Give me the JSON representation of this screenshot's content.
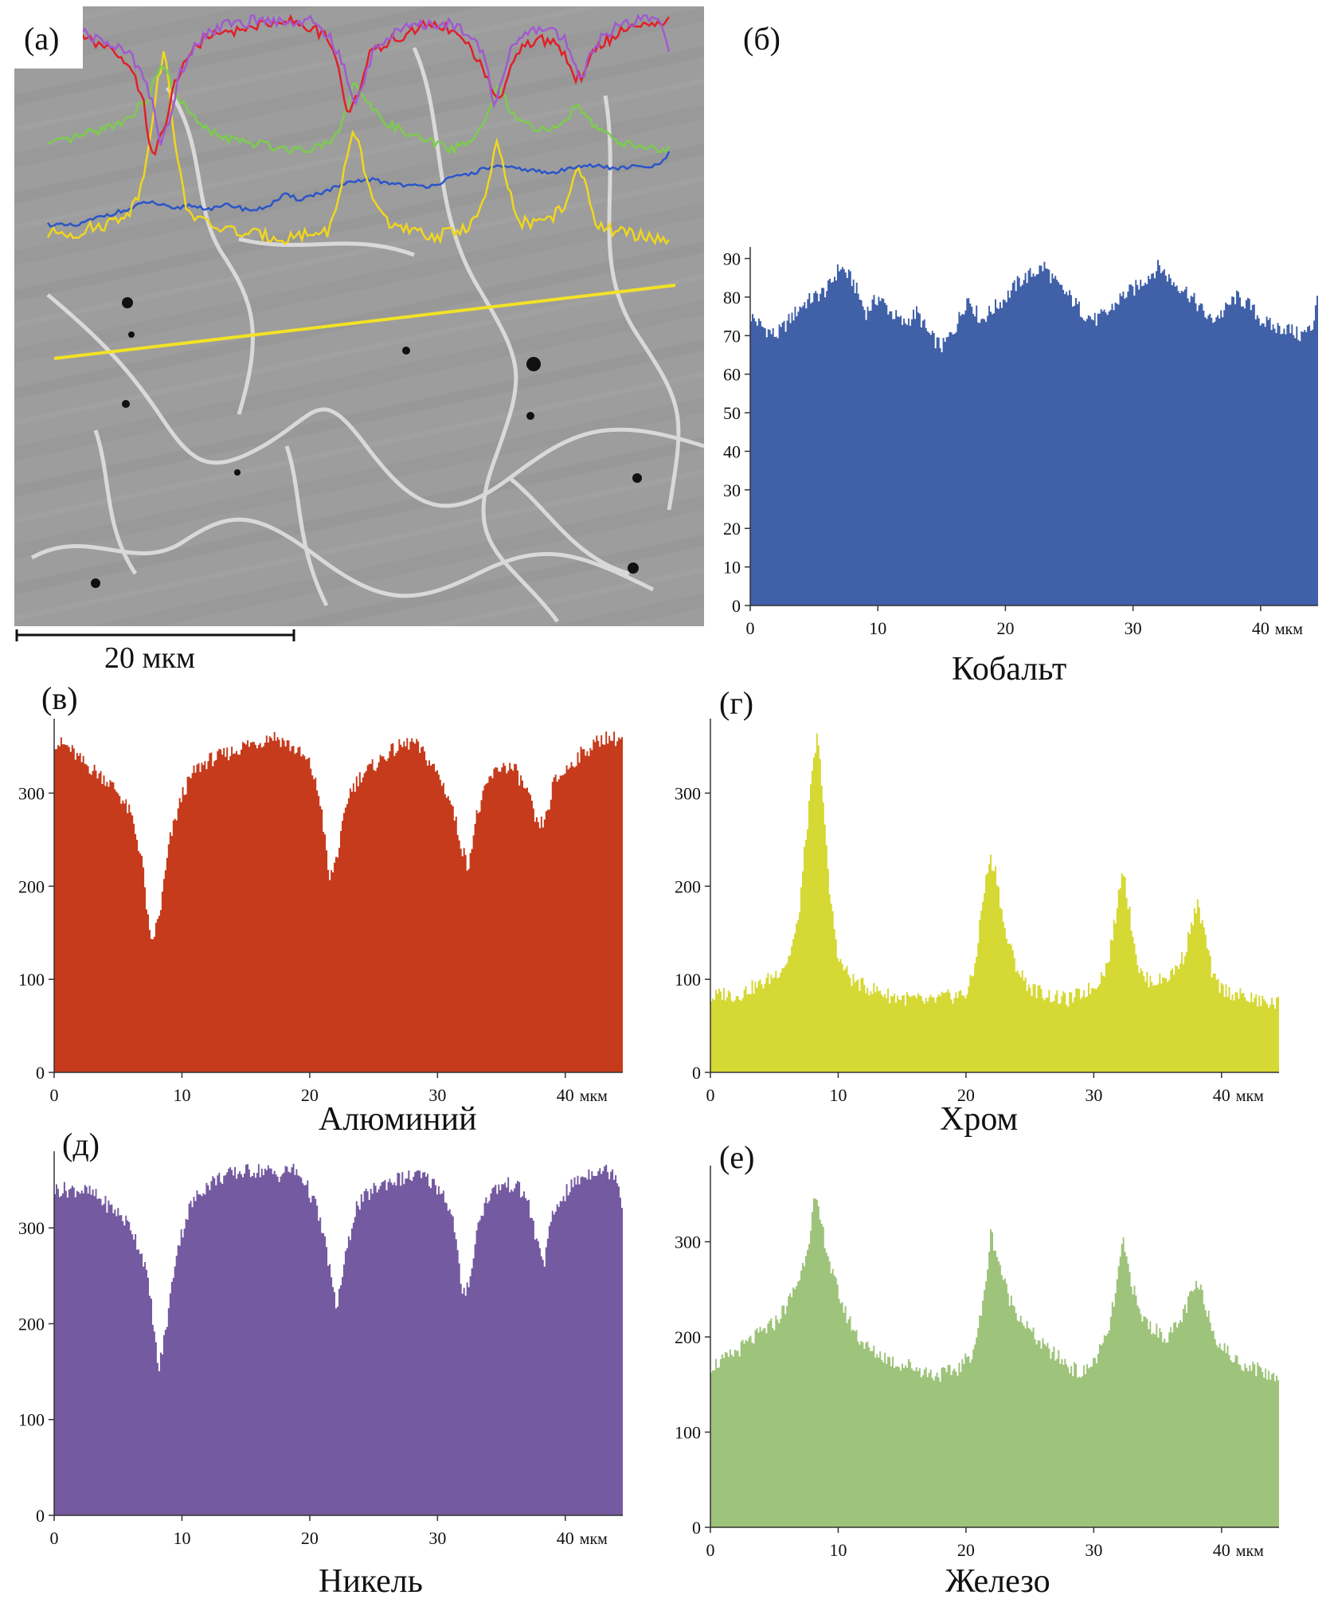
{
  "micrograph": {
    "panel_label": "(а)",
    "scale_bar_label": "20 мкм",
    "colors": {
      "matrix": "#9a9a9a",
      "grain_boundary": "#e4e4e4",
      "scan_line": "#f2e226"
    }
  },
  "chart_data": [
    {
      "id": "cobalt",
      "panel_label": "(б)",
      "type": "area",
      "title": "Кобальт",
      "color": "#4060a8",
      "xlim": [
        0,
        44.5
      ],
      "ylim": [
        0,
        93
      ],
      "xticks": [
        0,
        10,
        20,
        30,
        40
      ],
      "xtick_labels": [
        "0",
        "10",
        "20",
        "30",
        "40"
      ],
      "xunit": "мкм",
      "yticks": [
        0,
        10,
        20,
        30,
        40,
        50,
        60,
        70,
        80,
        90
      ],
      "profile": [
        [
          0,
          75
        ],
        [
          1,
          72
        ],
        [
          2,
          70
        ],
        [
          3,
          74
        ],
        [
          4,
          78
        ],
        [
          5,
          80
        ],
        [
          6,
          82
        ],
        [
          7,
          88
        ],
        [
          8,
          84
        ],
        [
          9,
          76
        ],
        [
          10,
          80
        ],
        [
          11,
          76
        ],
        [
          12,
          73
        ],
        [
          13,
          76
        ],
        [
          14,
          70
        ],
        [
          15,
          67
        ],
        [
          16,
          72
        ],
        [
          17,
          80
        ],
        [
          18,
          74
        ],
        [
          19,
          77
        ],
        [
          20,
          80
        ],
        [
          21,
          84
        ],
        [
          22,
          86
        ],
        [
          23,
          88
        ],
        [
          24,
          83
        ],
        [
          25,
          80
        ],
        [
          26,
          76
        ],
        [
          27,
          74
        ],
        [
          28,
          76
        ],
        [
          29,
          80
        ],
        [
          30,
          82
        ],
        [
          31,
          85
        ],
        [
          32,
          88
        ],
        [
          33,
          84
        ],
        [
          34,
          82
        ],
        [
          35,
          78
        ],
        [
          36,
          74
        ],
        [
          37,
          76
        ],
        [
          38,
          80
        ],
        [
          39,
          78
        ],
        [
          40,
          74
        ],
        [
          41,
          72
        ],
        [
          42,
          72
        ],
        [
          43,
          70
        ],
        [
          44,
          72
        ],
        [
          44.5,
          84
        ]
      ]
    },
    {
      "id": "aluminum",
      "panel_label": "(в)",
      "type": "area",
      "title": "Алюминий",
      "color": "#c53b1c",
      "xlim": [
        0,
        44.5
      ],
      "ylim": [
        0,
        380
      ],
      "xticks": [
        0,
        10,
        20,
        30,
        40
      ],
      "xtick_labels": [
        "0",
        "10",
        "20",
        "30",
        "40"
      ],
      "xunit": "мкм",
      "yticks": [
        0,
        100,
        200,
        300
      ],
      "profile": [
        [
          0,
          355
        ],
        [
          1,
          350
        ],
        [
          2,
          335
        ],
        [
          3,
          325
        ],
        [
          4,
          315
        ],
        [
          5,
          300
        ],
        [
          6,
          275
        ],
        [
          6.8,
          230
        ],
        [
          7.5,
          135
        ],
        [
          8.2,
          170
        ],
        [
          9,
          250
        ],
        [
          10,
          300
        ],
        [
          11,
          325
        ],
        [
          12,
          335
        ],
        [
          13,
          340
        ],
        [
          14,
          345
        ],
        [
          15,
          352
        ],
        [
          16,
          355
        ],
        [
          17,
          362
        ],
        [
          18,
          355
        ],
        [
          19,
          345
        ],
        [
          20,
          330
        ],
        [
          20.8,
          290
        ],
        [
          21.5,
          205
        ],
        [
          22.2,
          240
        ],
        [
          23,
          300
        ],
        [
          24,
          320
        ],
        [
          25,
          330
        ],
        [
          26,
          342
        ],
        [
          27,
          350
        ],
        [
          28,
          355
        ],
        [
          29,
          340
        ],
        [
          30,
          320
        ],
        [
          31,
          290
        ],
        [
          31.7,
          250
        ],
        [
          32.3,
          220
        ],
        [
          33,
          275
        ],
        [
          34,
          315
        ],
        [
          35,
          330
        ],
        [
          36,
          325
        ],
        [
          37,
          300
        ],
        [
          37.8,
          262
        ],
        [
          38.5,
          275
        ],
        [
          39,
          310
        ],
        [
          40,
          325
        ],
        [
          41,
          340
        ],
        [
          42,
          350
        ],
        [
          43,
          360
        ],
        [
          44,
          358
        ],
        [
          44.5,
          360
        ]
      ]
    },
    {
      "id": "chromium",
      "panel_label": "(г)",
      "type": "area",
      "title": "Хром",
      "color": "#d6d834",
      "xlim": [
        0,
        44.5
      ],
      "ylim": [
        0,
        380
      ],
      "xticks": [
        0,
        10,
        20,
        30,
        40
      ],
      "xtick_labels": [
        "0",
        "10",
        "20",
        "30",
        "40"
      ],
      "xunit": "мкм",
      "yticks": [
        0,
        100,
        200,
        300
      ],
      "profile": [
        [
          0,
          80
        ],
        [
          1,
          85
        ],
        [
          2,
          82
        ],
        [
          3,
          90
        ],
        [
          4,
          95
        ],
        [
          5,
          105
        ],
        [
          6,
          120
        ],
        [
          6.8,
          160
        ],
        [
          7.4,
          250
        ],
        [
          8,
          330
        ],
        [
          8.3,
          360
        ],
        [
          8.7,
          310
        ],
        [
          9.2,
          200
        ],
        [
          10,
          120
        ],
        [
          11,
          100
        ],
        [
          12,
          92
        ],
        [
          13,
          88
        ],
        [
          14,
          82
        ],
        [
          15,
          80
        ],
        [
          16,
          78
        ],
        [
          17,
          75
        ],
        [
          18,
          80
        ],
        [
          19,
          82
        ],
        [
          20,
          85
        ],
        [
          20.6,
          110
        ],
        [
          21.2,
          180
        ],
        [
          21.8,
          230
        ],
        [
          22.3,
          215
        ],
        [
          23,
          150
        ],
        [
          24,
          110
        ],
        [
          25,
          90
        ],
        [
          26,
          85
        ],
        [
          27,
          80
        ],
        [
          28,
          78
        ],
        [
          29,
          85
        ],
        [
          30,
          92
        ],
        [
          31,
          115
        ],
        [
          31.7,
          170
        ],
        [
          32.2,
          225
        ],
        [
          32.7,
          175
        ],
        [
          33.5,
          110
        ],
        [
          34,
          100
        ],
        [
          35,
          98
        ],
        [
          36,
          105
        ],
        [
          37,
          125
        ],
        [
          37.6,
          160
        ],
        [
          38.1,
          180
        ],
        [
          38.6,
          150
        ],
        [
          39.3,
          100
        ],
        [
          40,
          90
        ],
        [
          41,
          84
        ],
        [
          42,
          80
        ],
        [
          43,
          76
        ],
        [
          44,
          74
        ],
        [
          44.5,
          74
        ]
      ]
    },
    {
      "id": "nickel",
      "panel_label": "(д)",
      "type": "area",
      "title": "Никель",
      "color": "#745aa0",
      "xlim": [
        0,
        44.5
      ],
      "ylim": [
        0,
        380
      ],
      "xticks": [
        0,
        10,
        20,
        30,
        40
      ],
      "xtick_labels": [
        "0",
        "10",
        "20",
        "30",
        "40"
      ],
      "xunit": "мкм",
      "yticks": [
        0,
        100,
        200,
        300
      ],
      "profile": [
        [
          0,
          340
        ],
        [
          2,
          340
        ],
        [
          3,
          335
        ],
        [
          4,
          325
        ],
        [
          5,
          315
        ],
        [
          6,
          300
        ],
        [
          7,
          265
        ],
        [
          7.6,
          215
        ],
        [
          8.1,
          150
        ],
        [
          8.7,
          195
        ],
        [
          9.5,
          275
        ],
        [
          10.5,
          320
        ],
        [
          11.5,
          340
        ],
        [
          12.5,
          350
        ],
        [
          13.5,
          355
        ],
        [
          14.5,
          358
        ],
        [
          15.5,
          360
        ],
        [
          16.5,
          360
        ],
        [
          17.5,
          355
        ],
        [
          18.5,
          362
        ],
        [
          19.5,
          350
        ],
        [
          20.5,
          320
        ],
        [
          21.3,
          275
        ],
        [
          22,
          215
        ],
        [
          22.7,
          265
        ],
        [
          23.5,
          320
        ],
        [
          24.5,
          335
        ],
        [
          25.5,
          345
        ],
        [
          26.5,
          350
        ],
        [
          27.5,
          352
        ],
        [
          28.5,
          355
        ],
        [
          29.5,
          348
        ],
        [
          30.5,
          335
        ],
        [
          31.3,
          300
        ],
        [
          31.9,
          225
        ],
        [
          32.5,
          250
        ],
        [
          33.2,
          310
        ],
        [
          34,
          335
        ],
        [
          35,
          345
        ],
        [
          36,
          345
        ],
        [
          37,
          330
        ],
        [
          37.7,
          285
        ],
        [
          38.3,
          265
        ],
        [
          38.9,
          310
        ],
        [
          39.6,
          330
        ],
        [
          40.5,
          345
        ],
        [
          41.5,
          355
        ],
        [
          42.5,
          362
        ],
        [
          43.5,
          358
        ],
        [
          44,
          355
        ],
        [
          44.5,
          315
        ]
      ]
    },
    {
      "id": "iron",
      "panel_label": "(е)",
      "type": "area",
      "title": "Железо",
      "color": "#9ec37a",
      "xlim": [
        0,
        44.5
      ],
      "ylim": [
        0,
        380
      ],
      "xticks": [
        0,
        10,
        20,
        30,
        40
      ],
      "xtick_labels": [
        "0",
        "10",
        "20",
        "30",
        "40"
      ],
      "xunit": "мкм",
      "yticks": [
        0,
        100,
        200,
        300
      ],
      "profile": [
        [
          0,
          170
        ],
        [
          1,
          175
        ],
        [
          2,
          185
        ],
        [
          3,
          195
        ],
        [
          4,
          205
        ],
        [
          5,
          215
        ],
        [
          6,
          235
        ],
        [
          7,
          265
        ],
        [
          7.6,
          300
        ],
        [
          8.1,
          345
        ],
        [
          8.6,
          320
        ],
        [
          9.5,
          265
        ],
        [
          10.5,
          225
        ],
        [
          11.5,
          200
        ],
        [
          12.5,
          185
        ],
        [
          13.5,
          180
        ],
        [
          14.5,
          172
        ],
        [
          15.5,
          170
        ],
        [
          16.5,
          165
        ],
        [
          17.5,
          160
        ],
        [
          18.5,
          162
        ],
        [
          19.5,
          168
        ],
        [
          20.5,
          185
        ],
        [
          21.3,
          235
        ],
        [
          21.9,
          310
        ],
        [
          22.4,
          285
        ],
        [
          23.2,
          245
        ],
        [
          24,
          225
        ],
        [
          25,
          205
        ],
        [
          26,
          190
        ],
        [
          27,
          180
        ],
        [
          28,
          170
        ],
        [
          29,
          160
        ],
        [
          30,
          175
        ],
        [
          31,
          200
        ],
        [
          31.7,
          250
        ],
        [
          32.2,
          300
        ],
        [
          32.7,
          270
        ],
        [
          33.5,
          225
        ],
        [
          34.5,
          210
        ],
        [
          35.5,
          200
        ],
        [
          36.5,
          210
        ],
        [
          37.3,
          235
        ],
        [
          38,
          255
        ],
        [
          38.6,
          240
        ],
        [
          39.3,
          205
        ],
        [
          40,
          190
        ],
        [
          41,
          175
        ],
        [
          42,
          170
        ],
        [
          43,
          165
        ],
        [
          44,
          158
        ],
        [
          44.5,
          160
        ]
      ]
    }
  ]
}
